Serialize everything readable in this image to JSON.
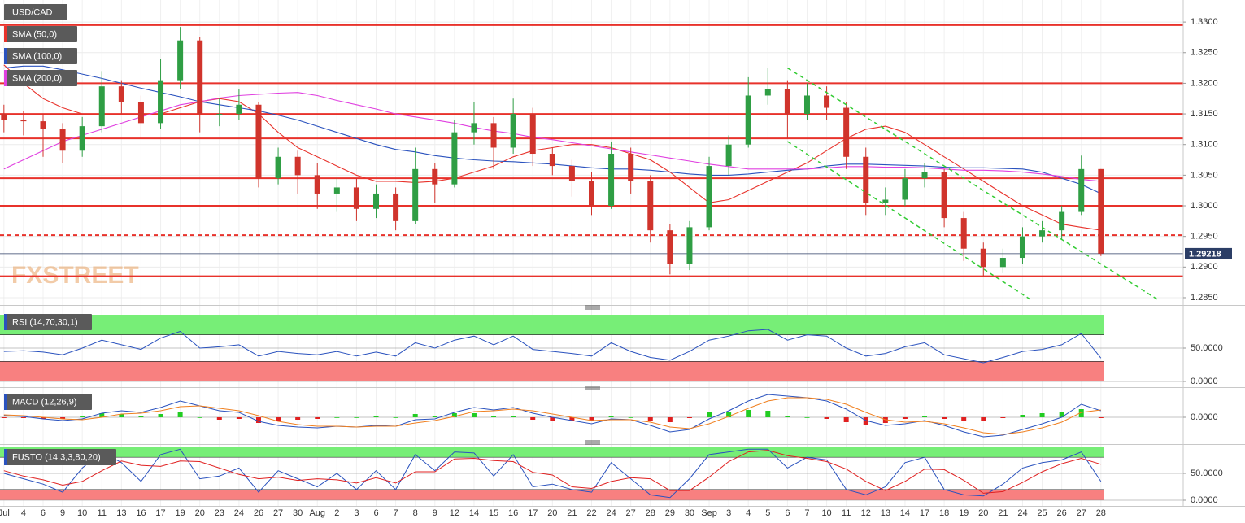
{
  "chart_data": [
    {
      "type": "candlestick",
      "title": "USD/CAD",
      "categories": [
        "Jul",
        "4",
        "6",
        "9",
        "10",
        "11",
        "13",
        "16",
        "17",
        "19",
        "20",
        "23",
        "24",
        "26",
        "27",
        "30",
        "Aug",
        "2",
        "3",
        "6",
        "7",
        "8",
        "9",
        "12",
        "14",
        "15",
        "16",
        "17",
        "20",
        "21",
        "22",
        "24",
        "27",
        "28",
        "29",
        "30",
        "Sep",
        "3",
        "4",
        "5",
        "6",
        "7",
        "10",
        "11",
        "12",
        "13",
        "14",
        "17",
        "18",
        "19",
        "20",
        "21",
        "24",
        "25",
        "26",
        "27",
        "28"
      ],
      "open": [
        1.315,
        1.314,
        1.3138,
        1.3125,
        1.309,
        1.313,
        1.3195,
        1.317,
        1.3135,
        1.3205,
        1.327,
        1.315,
        1.315,
        1.3165,
        1.3045,
        1.308,
        1.305,
        1.302,
        1.303,
        1.2995,
        1.302,
        1.2975,
        1.306,
        1.3035,
        1.312,
        1.3135,
        1.3095,
        1.315,
        1.3085,
        1.3065,
        1.304,
        1.3,
        1.3085,
        1.304,
        1.296,
        1.2905,
        1.2965,
        1.3065,
        1.31,
        1.318,
        1.319,
        1.315,
        1.318,
        1.316,
        1.308,
        1.3005,
        1.301,
        1.3045,
        1.3055,
        1.298,
        1.293,
        1.29,
        1.2915,
        1.295,
        1.296,
        1.299,
        1.306
      ],
      "high": [
        1.3165,
        1.3155,
        1.315,
        1.3135,
        1.3145,
        1.322,
        1.3205,
        1.318,
        1.324,
        1.3292,
        1.3275,
        1.3175,
        1.319,
        1.317,
        1.3095,
        1.309,
        1.307,
        1.3045,
        1.3045,
        1.3035,
        1.303,
        1.3095,
        1.307,
        1.314,
        1.317,
        1.3145,
        1.3175,
        1.316,
        1.3095,
        1.3075,
        1.3055,
        1.3105,
        1.3095,
        1.305,
        1.297,
        1.2975,
        1.308,
        1.3115,
        1.321,
        1.3225,
        1.3205,
        1.32,
        1.3195,
        1.317,
        1.3095,
        1.303,
        1.306,
        1.307,
        1.306,
        1.299,
        1.294,
        1.293,
        1.2965,
        1.2975,
        1.3,
        1.3082,
        1.306
      ],
      "low": [
        1.312,
        1.3115,
        1.308,
        1.307,
        1.308,
        1.312,
        1.315,
        1.311,
        1.3125,
        1.319,
        1.312,
        1.313,
        1.314,
        1.303,
        1.3035,
        1.302,
        1.2995,
        1.299,
        1.2975,
        1.298,
        1.296,
        1.297,
        1.3005,
        1.303,
        1.31,
        1.306,
        1.3085,
        1.3065,
        1.305,
        1.3015,
        1.2985,
        1.2995,
        1.302,
        1.294,
        1.2888,
        1.2895,
        1.296,
        1.305,
        1.3095,
        1.3165,
        1.311,
        1.314,
        1.314,
        1.306,
        1.2985,
        1.2985,
        1.3,
        1.303,
        1.2965,
        1.291,
        1.2885,
        1.289,
        1.2905,
        1.294,
        1.2945,
        1.2985,
        1.2918
      ],
      "close": [
        1.314,
        1.3138,
        1.3125,
        1.309,
        1.313,
        1.3195,
        1.317,
        1.3135,
        1.3205,
        1.327,
        1.315,
        1.315,
        1.3165,
        1.3045,
        1.308,
        1.305,
        1.302,
        1.303,
        1.2995,
        1.302,
        1.2975,
        1.306,
        1.3035,
        1.312,
        1.3135,
        1.3095,
        1.315,
        1.3085,
        1.3065,
        1.304,
        1.3,
        1.3085,
        1.304,
        1.296,
        1.2905,
        1.2965,
        1.3065,
        1.31,
        1.318,
        1.319,
        1.315,
        1.318,
        1.316,
        1.308,
        1.3005,
        1.301,
        1.3045,
        1.3055,
        1.298,
        1.293,
        1.29,
        1.2915,
        1.295,
        1.296,
        1.299,
        1.306,
        1.2922
      ],
      "up_color": "#2f9e44",
      "down_color": "#d0342c",
      "series": [
        {
          "name": "SMA (50,0)",
          "color": "#e8322b",
          "values": [
            1.323,
            1.32,
            1.3175,
            1.316,
            1.315,
            1.315,
            1.315,
            1.3148,
            1.315,
            1.316,
            1.317,
            1.3175,
            1.317,
            1.315,
            1.312,
            1.3095,
            1.308,
            1.3065,
            1.305,
            1.304,
            1.304,
            1.3038,
            1.304,
            1.3045,
            1.3055,
            1.3065,
            1.308,
            1.309,
            1.3095,
            1.31,
            1.31,
            1.3095,
            1.3085,
            1.3075,
            1.3055,
            1.303,
            1.3005,
            1.301,
            1.3025,
            1.304,
            1.3055,
            1.307,
            1.309,
            1.311,
            1.3125,
            1.313,
            1.312,
            1.31,
            1.308,
            1.306,
            1.304,
            1.302,
            1.3,
            1.2985,
            1.297,
            1.2965,
            1.296
          ]
        },
        {
          "name": "SMA (100,0)",
          "color": "#2a52be",
          "values": [
            1.3225,
            1.3228,
            1.3228,
            1.3222,
            1.3215,
            1.3208,
            1.32,
            1.3192,
            1.3185,
            1.3178,
            1.317,
            1.3165,
            1.316,
            1.3155,
            1.3148,
            1.314,
            1.313,
            1.312,
            1.311,
            1.31,
            1.3092,
            1.3088,
            1.3082,
            1.3078,
            1.3075,
            1.3073,
            1.3072,
            1.307,
            1.3068,
            1.3065,
            1.3062,
            1.306,
            1.306,
            1.3058,
            1.3055,
            1.3052,
            1.305,
            1.305,
            1.3052,
            1.3055,
            1.3058,
            1.306,
            1.3065,
            1.3068,
            1.3068,
            1.3067,
            1.3066,
            1.3065,
            1.3063,
            1.3062,
            1.3062,
            1.3061,
            1.306,
            1.3055,
            1.3045,
            1.3035,
            1.302
          ]
        },
        {
          "name": "SMA (200,0)",
          "color": "#e040e0",
          "values": [
            1.306,
            1.3075,
            1.309,
            1.3105,
            1.3115,
            1.3125,
            1.3135,
            1.3145,
            1.3155,
            1.3165,
            1.317,
            1.3176,
            1.318,
            1.3182,
            1.3184,
            1.3185,
            1.318,
            1.3172,
            1.3165,
            1.3158,
            1.315,
            1.3145,
            1.314,
            1.3135,
            1.3128,
            1.3122,
            1.3118,
            1.3112,
            1.3108,
            1.3103,
            1.3098,
            1.3093,
            1.3088,
            1.3083,
            1.3078,
            1.3073,
            1.3068,
            1.3064,
            1.306,
            1.306,
            1.306,
            1.306,
            1.3062,
            1.3064,
            1.3064,
            1.3063,
            1.3063,
            1.3062,
            1.306,
            1.3058,
            1.3058,
            1.3057,
            1.3055,
            1.3052,
            1.3048,
            1.3043,
            1.304
          ]
        }
      ],
      "levels": [
        {
          "value": 1.3295,
          "style": "solid"
        },
        {
          "value": 1.32,
          "style": "solid"
        },
        {
          "value": 1.315,
          "style": "solid"
        },
        {
          "value": 1.311,
          "style": "solid"
        },
        {
          "value": 1.3045,
          "style": "solid"
        },
        {
          "value": 1.3,
          "style": "solid"
        },
        {
          "value": 1.2952,
          "style": "dashed"
        },
        {
          "value": 1.2885,
          "style": "solid"
        }
      ],
      "level_color": "#e8322b",
      "trendlines": [
        {
          "points": [
            [
              40,
              1.3225
            ],
            [
              59,
              1.2845
            ]
          ]
        },
        {
          "points": [
            [
              40,
              1.3105
            ],
            [
              52.5,
              1.2845
            ]
          ]
        }
      ],
      "trendline_color": "#33cc33",
      "last_price": 1.29218,
      "last_price_color": "#2c3e66",
      "watermark": "FXSTREET",
      "ylim": [
        1.2842,
        1.3336
      ],
      "yticks": [
        {
          "value": 1.33,
          "label": "1.3300"
        },
        {
          "value": 1.325,
          "label": "1.3250"
        },
        {
          "value": 1.32,
          "label": "1.3200"
        },
        {
          "value": 1.315,
          "label": "1.3150"
        },
        {
          "value": 1.31,
          "label": "1.3100"
        },
        {
          "value": 1.305,
          "label": "1.3050"
        },
        {
          "value": 1.3,
          "label": "1.3000"
        },
        {
          "value": 1.295,
          "label": "1.2950"
        },
        {
          "value": 1.29,
          "label": "1.2900"
        },
        {
          "value": 1.285,
          "label": "1.2850"
        }
      ],
      "grid": true
    },
    {
      "type": "line",
      "title": "RSI (14,70,30,1)",
      "series": [
        {
          "color": "#2a52be",
          "values": [
            45,
            46,
            44,
            40,
            50,
            62,
            55,
            48,
            65,
            75,
            50,
            52,
            55,
            38,
            45,
            42,
            40,
            45,
            38,
            44,
            38,
            58,
            50,
            62,
            68,
            55,
            68,
            48,
            45,
            42,
            38,
            58,
            45,
            36,
            32,
            45,
            62,
            68,
            76,
            78,
            62,
            70,
            68,
            50,
            38,
            42,
            52,
            58,
            40,
            34,
            28,
            36,
            45,
            48,
            55,
            72,
            35
          ]
        }
      ],
      "bands": [
        {
          "from": 70,
          "to": 100,
          "color": "#77ee77"
        },
        {
          "from": 0,
          "to": 30,
          "color": "#f88080"
        }
      ],
      "ylim": [
        0,
        100
      ],
      "yticks": [
        {
          "value": 50,
          "label": "50.0000"
        },
        {
          "value": 0,
          "label": "0.0000"
        }
      ]
    },
    {
      "type": "macd",
      "title": "MACD (12,26,9)",
      "series": [
        {
          "color": "#2a52be",
          "values": [
            0.0002,
            0.0001,
            -0.0002,
            -0.0004,
            -0.0002,
            0.0005,
            0.0008,
            0.0006,
            0.0012,
            0.002,
            0.0014,
            0.0008,
            0.0006,
            -0.0005,
            -0.001,
            -0.0012,
            -0.0013,
            -0.0011,
            -0.0012,
            -0.001,
            -0.0011,
            -0.0003,
            -0.0002,
            0.0006,
            0.0012,
            0.0009,
            0.0012,
            0.0005,
            0.0,
            -0.0004,
            -0.0008,
            -0.0002,
            -0.0003,
            -0.001,
            -0.0018,
            -0.0015,
            -0.0002,
            0.0008,
            0.002,
            0.0028,
            0.0026,
            0.0024,
            0.002,
            0.001,
            -0.0004,
            -0.001,
            -0.0008,
            -0.0004,
            -0.001,
            -0.0018,
            -0.0024,
            -0.0022,
            -0.0015,
            -0.0008,
            0.0,
            0.0016,
            0.0008
          ]
        },
        {
          "color": "#f08020",
          "values": [
            0.0003,
            0.0002,
            0.0,
            -0.0002,
            -0.0003,
            0.0,
            0.0004,
            0.0005,
            0.0008,
            0.0013,
            0.0014,
            0.0011,
            0.0008,
            0.0002,
            -0.0005,
            -0.0009,
            -0.0011,
            -0.0011,
            -0.0012,
            -0.0011,
            -0.0011,
            -0.0007,
            -0.0004,
            0.0001,
            0.0007,
            0.0008,
            0.001,
            0.0008,
            0.0004,
            0.0,
            -0.0004,
            -0.0003,
            -0.0003,
            -0.0006,
            -0.0012,
            -0.0014,
            -0.0008,
            0.0001,
            0.0011,
            0.002,
            0.0024,
            0.0024,
            0.0022,
            0.0016,
            0.0006,
            -0.0003,
            -0.0006,
            -0.0005,
            -0.0008,
            -0.0013,
            -0.0019,
            -0.0021,
            -0.0018,
            -0.0013,
            -0.0006,
            0.0006,
            0.0009
          ]
        }
      ],
      "histogram": [
        -0.0001,
        -0.0001,
        -0.0002,
        -0.0002,
        0.0001,
        0.0005,
        0.0004,
        0.0001,
        0.0004,
        0.0007,
        0.0,
        -0.0003,
        -0.0002,
        -0.0007,
        -0.0005,
        -0.0003,
        -0.0002,
        0.0,
        0.0,
        0.0001,
        0.0,
        0.0004,
        0.0002,
        0.0005,
        0.0005,
        0.0001,
        0.0002,
        -0.0003,
        -0.0004,
        -0.0004,
        -0.0004,
        0.0001,
        0.0,
        -0.0004,
        -0.0006,
        -0.0001,
        0.0006,
        0.0007,
        0.0009,
        0.0008,
        0.0002,
        0.0,
        -0.0002,
        -0.0006,
        -0.001,
        -0.0007,
        -0.0002,
        0.0001,
        -0.0002,
        -0.0005,
        -0.0005,
        -0.0001,
        0.0003,
        0.0005,
        0.0006,
        0.001,
        -0.0001
      ],
      "positive_color": "#22cc22",
      "negative_color": "#e02020",
      "ylim": [
        -0.0032,
        0.0032
      ],
      "yticks": [
        {
          "value": 0,
          "label": "0.0000"
        }
      ]
    },
    {
      "type": "line",
      "title": "FUSTO (14,3,3,80,20)",
      "series": [
        {
          "color": "#2a52be",
          "values": [
            50,
            40,
            30,
            15,
            60,
            90,
            70,
            35,
            85,
            95,
            40,
            45,
            60,
            15,
            55,
            40,
            25,
            50,
            20,
            55,
            20,
            85,
            55,
            90,
            88,
            45,
            85,
            25,
            30,
            20,
            15,
            70,
            40,
            10,
            5,
            40,
            85,
            90,
            95,
            95,
            60,
            80,
            75,
            20,
            10,
            25,
            70,
            80,
            20,
            10,
            8,
            30,
            60,
            70,
            75,
            90,
            35
          ]
        },
        {
          "color": "#e02020",
          "values": [
            55,
            45,
            38,
            28,
            35,
            55,
            73,
            65,
            63,
            73,
            72,
            60,
            48,
            40,
            43,
            37,
            40,
            38,
            32,
            42,
            32,
            53,
            53,
            77,
            78,
            74,
            72,
            52,
            47,
            25,
            22,
            35,
            42,
            40,
            18,
            18,
            43,
            72,
            90,
            93,
            83,
            78,
            72,
            58,
            35,
            18,
            35,
            58,
            57,
            37,
            13,
            16,
            33,
            53,
            68,
            78,
            67
          ]
        }
      ],
      "bands": [
        {
          "from": 80,
          "to": 100,
          "color": "#77ee77"
        },
        {
          "from": 0,
          "to": 20,
          "color": "#f88080"
        }
      ],
      "ylim": [
        0,
        100
      ],
      "yticks": [
        {
          "value": 50,
          "label": "50.0000"
        },
        {
          "value": 0,
          "label": "0.0000"
        }
      ]
    }
  ]
}
